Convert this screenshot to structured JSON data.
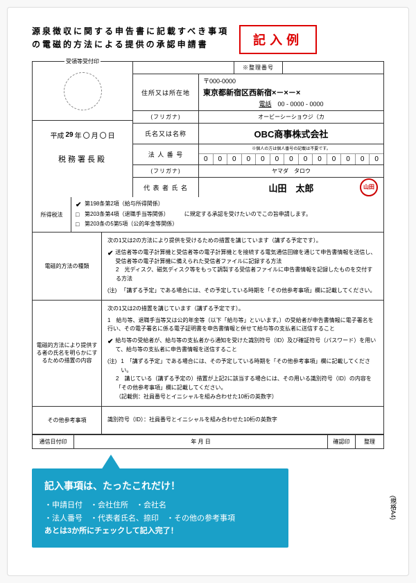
{
  "header": {
    "title_line1": "源泉徴収に関する申告書に記載すべき事項",
    "title_line2": "の電磁的方法による提供の承認申請書",
    "example_label": "記入例"
  },
  "stamp": {
    "label": "受領等受付印"
  },
  "date": {
    "era": "平成",
    "year": "29",
    "year_suf": "年",
    "month": "〇",
    "month_suf": "月",
    "day": "〇",
    "day_suf": "日"
  },
  "office": "税務署長殿",
  "ref": {
    "label": "※整理番号",
    "value": ""
  },
  "address": {
    "label": "住所又は所在地",
    "postal": "〒000-0000",
    "line1": "東京都新宿区西新宿×－×－×",
    "tel_label": "電話",
    "tel": "00 - 0000 - 0000"
  },
  "furigana1": {
    "label": "(フリガナ)",
    "value": "オービーシーショウジ（カ"
  },
  "name": {
    "label": "氏名又は名称",
    "value": "OBC商事株式会社"
  },
  "houjin": {
    "label": "法 人 番 号",
    "note": "※個人の方は個人番号の記載は不要です。",
    "digits": [
      "0",
      "0",
      "0",
      "0",
      "0",
      "0",
      "0",
      "0",
      "0",
      "0",
      "0",
      "0",
      "0"
    ]
  },
  "furigana2": {
    "label": "(フリガナ)",
    "value": "ヤマダ　タロウ"
  },
  "rep": {
    "label": "代 表 者 氏 名",
    "value": "山田　太郎",
    "seal": "山田"
  },
  "tax_law": {
    "label": "所得税法",
    "item1": "第198条第2項（給与所得関係）",
    "item2": "第203条第4項（退職手当等関係）",
    "item3": "第203条の5第5項（公的年金等関係）",
    "tail": "に規定する承認を受けたいのでこの旨申請します。"
  },
  "method": {
    "label": "電磁的方法の種類",
    "intro": "次の1又は2の方法により提供を受けるための措置を講じています（講ずる予定です）。",
    "item1": "送信者等の電子計算機と受信者等の電子計算機とを接続する電気通信回線を通じて申告書情報を送信し、受信者等の電子計算機に備えられた受信者ファイルに記録する方法",
    "item2": "2　光ディスク、磁気ディスク等をもって調製する受信者ファイルに申告書情報を記録したものを交付する方法",
    "note_label": "(注)",
    "note": "「講ずる予定」である場合には、その予定している時期を「その他参考事項」欄に記載してください。"
  },
  "disclosure": {
    "label": "電磁的方法により提供する者の氏名を明らかにするための措置の内容",
    "intro": "次の1又は2の措置を講じています（講ずる予定です）。",
    "item1": "1　給与等、退職手当等又は公的年金等（以下「給与等」といいます。）の受給者が申告書情報に電子署名を行い、その電子署名に係る電子証明書を申告書情報と併せて給与等の支払者に送信すること",
    "item2": "給与等の受給者が、給与等の支払者から通知を受けた識別符号（ID）及び確証符号（パスワード）を用いて、給与等の支払者に申告書情報を送信すること",
    "note_label": "(注)",
    "note1": "1　「講ずる予定」である場合には、その予定している時期を「その他参考事項」欄に記載してください。",
    "note2": "2　講じている（講ずる予定の）措置が上記2に該当する場合には、その用いる識別符号（ID）の内容を「その他参考事項」欄に記載してください。",
    "note3": "（記載例：社員番号とイニシャルを組み合わせた10桁の英数字）"
  },
  "other": {
    "label": "その他参考事項",
    "value": "識別符号（ID）：社員番号とイニシャルを組み合わせた10桁の英数字"
  },
  "bottom": {
    "c1": "通信日付印",
    "c2": "年 月 日",
    "c3": "確認印",
    "c4": "整理"
  },
  "side": "(規格A4)",
  "callout": {
    "title": "記入事項は、たったこれだけ！",
    "line1": "・申請日付　・会社住所　・会社名",
    "line2": "・法人番号　・代表者氏名、捺印　・その他の参考事項",
    "line3": "あとは3か所にチェックして記入完了！"
  }
}
